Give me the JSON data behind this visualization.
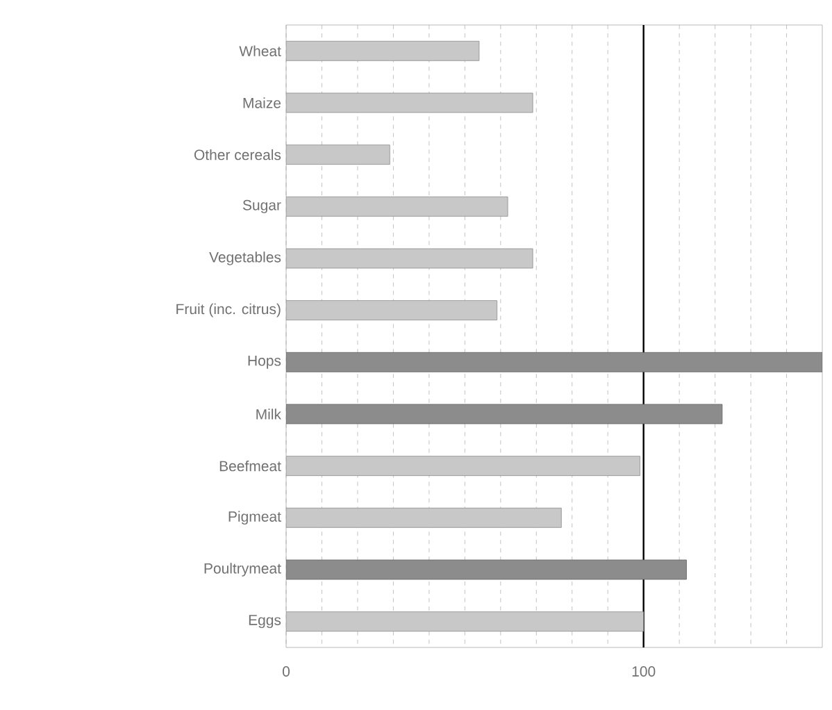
{
  "chart_data": {
    "type": "bar",
    "orientation": "horizontal",
    "categories": [
      "Wheat",
      "Maize",
      "Other cereals",
      "Sugar",
      "Vegetables",
      "Fruit (inc. citrus)",
      "Hops",
      "Milk",
      "Beefmeat",
      "Pigmeat",
      "Poultrymeat",
      "Eggs"
    ],
    "values": [
      54,
      69,
      29,
      62,
      69,
      59,
      150,
      122,
      99,
      77,
      112,
      100
    ],
    "colors": [
      "#c8c8c8",
      "#c8c8c8",
      "#c8c8c8",
      "#c8c8c8",
      "#c8c8c8",
      "#c8c8c8",
      "#8c8c8c",
      "#8c8c8c",
      "#c8c8c8",
      "#c8c8c8",
      "#8c8c8c",
      "#c8c8c8"
    ],
    "xlim": [
      0,
      150
    ],
    "xticks": [
      0,
      {
        "value": 10,
        "label": null
      },
      {
        "value": 20,
        "label": null
      },
      {
        "value": 30,
        "label": null
      },
      {
        "value": 40,
        "label": null
      },
      {
        "value": 50,
        "label": null
      },
      {
        "value": 60,
        "label": null
      },
      {
        "value": 70,
        "label": null
      },
      {
        "value": 80,
        "label": null
      },
      {
        "value": 90,
        "label": null
      },
      100,
      {
        "value": 110,
        "label": null
      },
      {
        "value": 120,
        "label": null
      },
      {
        "value": 130,
        "label": null
      },
      {
        "value": 140,
        "label": null
      }
    ],
    "grid": "x",
    "ref_lines": [
      {
        "axis": "x",
        "value": 100,
        "color": "#000000",
        "line_style": "solid"
      }
    ]
  }
}
